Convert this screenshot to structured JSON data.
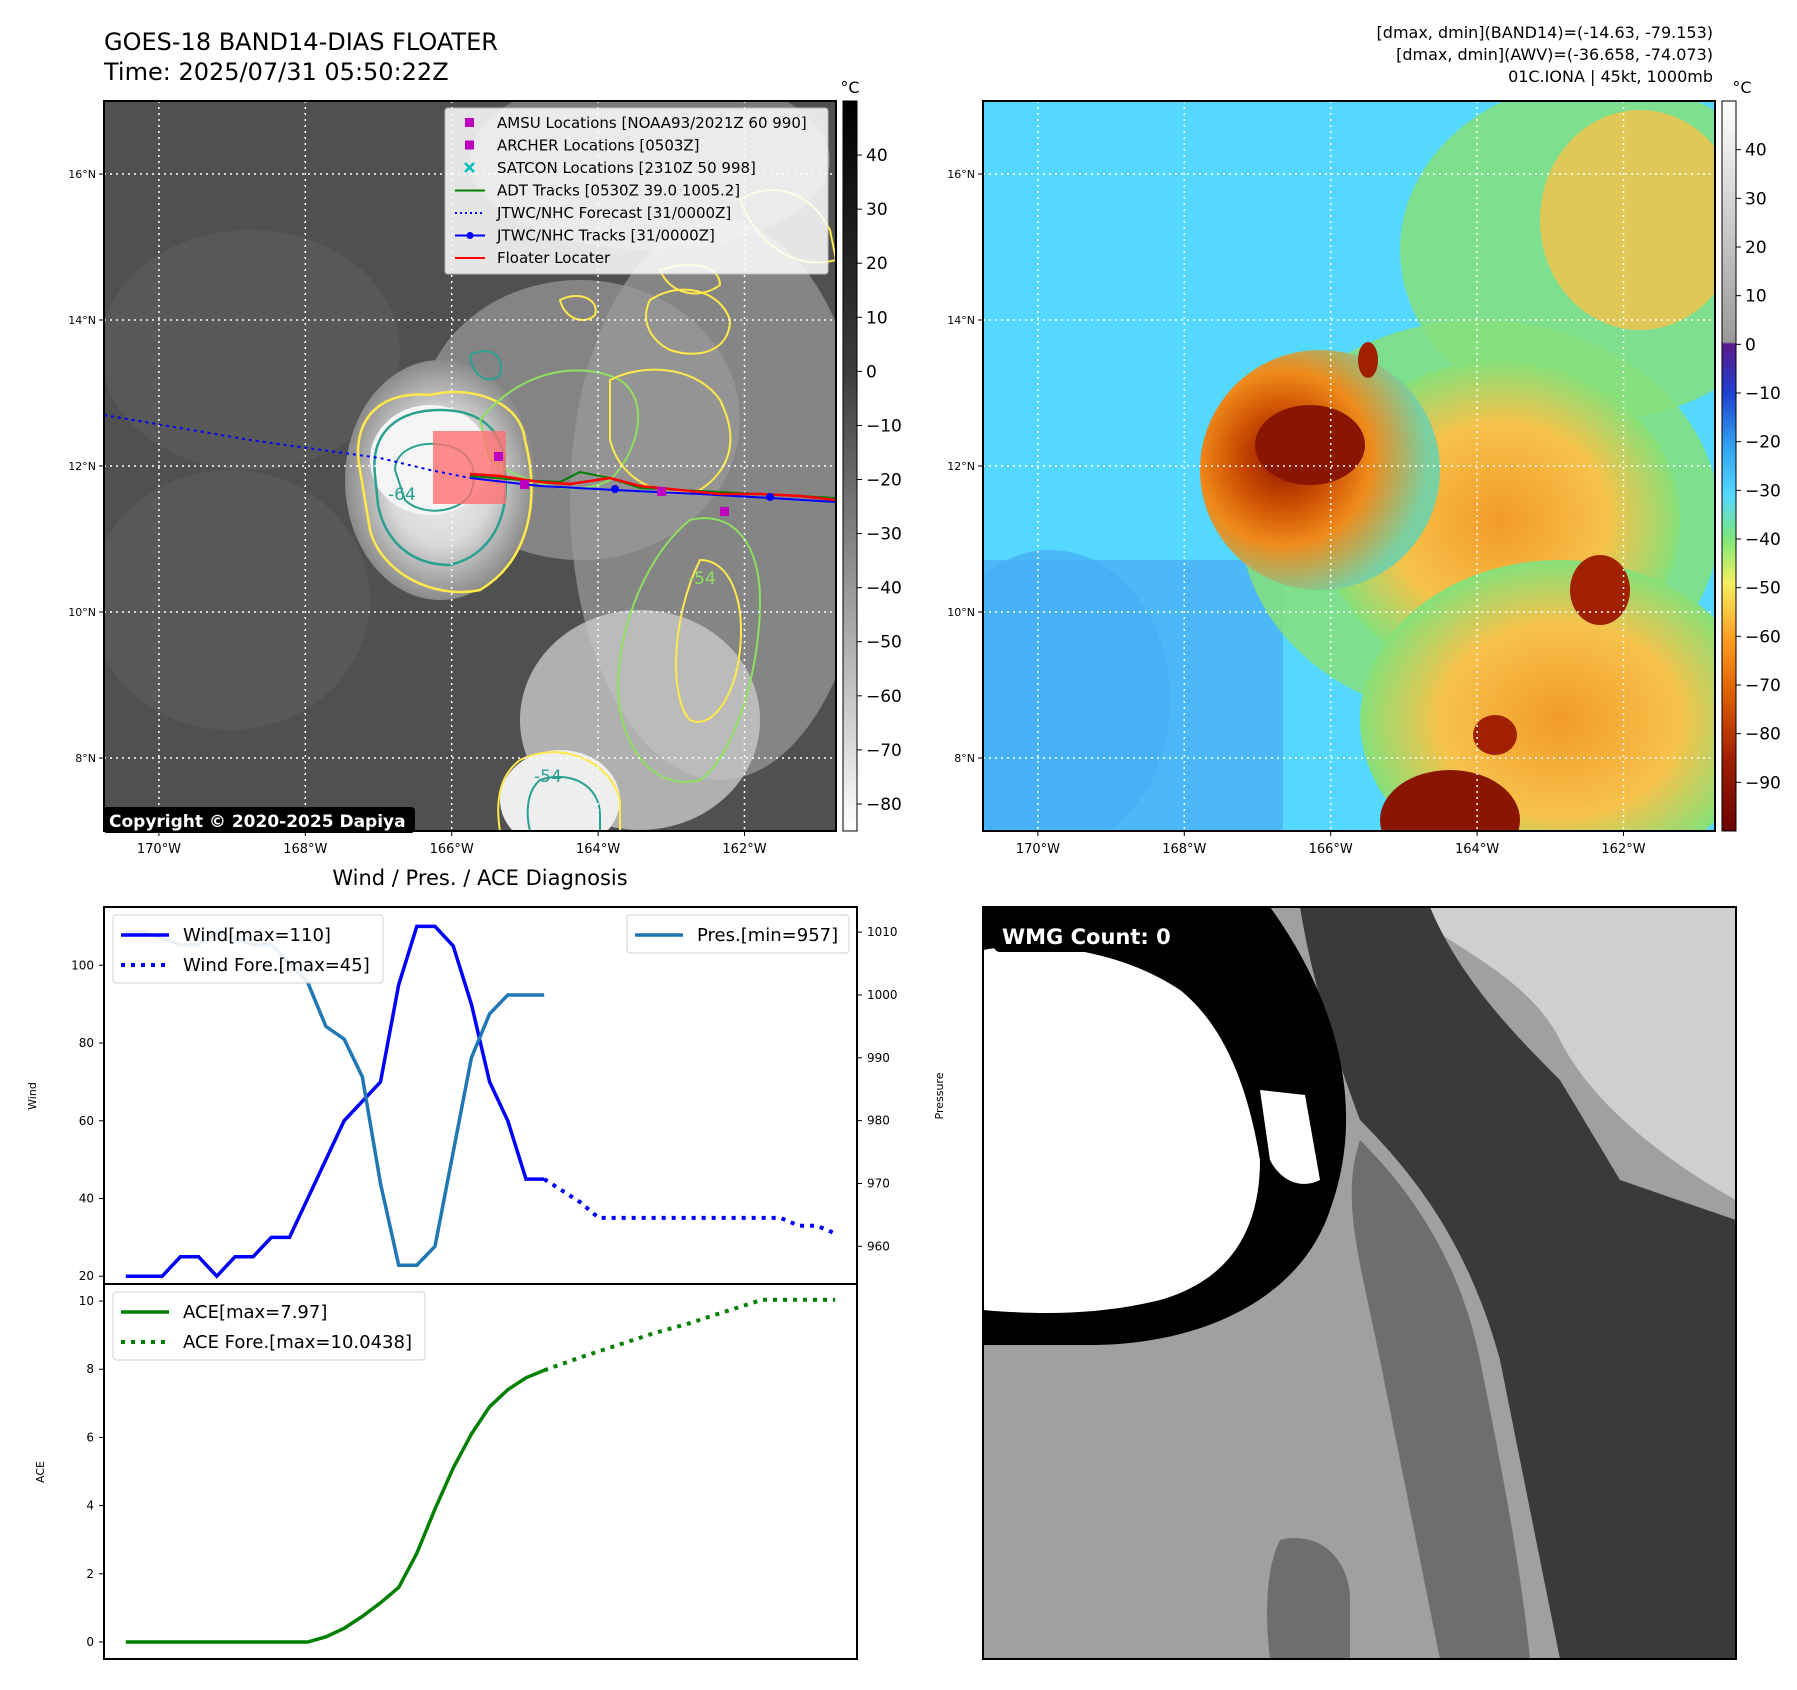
{
  "header": {
    "title_line1": "GOES-18 BAND14-DIAS FLOATER",
    "title_line2": "Time: 2025/07/31 05:50:22Z",
    "info_line1": "[dmax, dmin](BAND14)=(-14.63, -79.153)",
    "info_line2": "[dmax, dmin](AWV)=(-36.658, -74.073)",
    "info_line3": "01C.IONA | 45kt, 1000mb"
  },
  "map": {
    "lat_ticks": [
      "16°N",
      "14°N",
      "12°N",
      "10°N",
      "8°N"
    ],
    "lat_values": [
      16,
      14,
      12,
      10,
      8
    ],
    "lon_ticks": [
      "170°W",
      "168°W",
      "166°W",
      "164°W",
      "162°W"
    ],
    "lon_values": [
      -170,
      -168,
      -166,
      -164,
      -162
    ],
    "lat_range": [
      7,
      17
    ],
    "lon_range": [
      -170.75,
      -160.75
    ],
    "copyright": "Copyright © 2020-2025 Dapiya",
    "contour_labels": [
      "-64",
      "-54",
      "-54"
    ],
    "legend": [
      {
        "label": "AMSU Locations [NOAA93/2021Z 60 990]",
        "color": "#c000c0",
        "marker": "square"
      },
      {
        "label": "ARCHER Locations [0503Z]",
        "color": "#c000c0",
        "marker": "square"
      },
      {
        "label": "SATCON Locations [2310Z 50 998]",
        "color": "#00bfbf",
        "marker": "x"
      },
      {
        "label": "ADT Tracks [0530Z 39.0 1005.2]",
        "color": "#008000",
        "marker": "line"
      },
      {
        "label": "JTWC/NHC Forecast [31/0000Z]",
        "color": "#0000ff",
        "marker": "dotted"
      },
      {
        "label": "JTWC/NHC Tracks [31/0000Z]",
        "color": "#0000ff",
        "marker": "line-dot"
      },
      {
        "label": "Floater Locater",
        "color": "#ff0000",
        "marker": "line"
      }
    ]
  },
  "colorbar_gray": {
    "unit": "°C",
    "ticks": [
      "40",
      "30",
      "20",
      "10",
      "0",
      "−10",
      "−20",
      "−30",
      "−40",
      "−50",
      "−60",
      "−70",
      "−80"
    ],
    "tick_values": [
      40,
      30,
      20,
      10,
      0,
      -10,
      -20,
      -30,
      -40,
      -50,
      -60,
      -70,
      -80
    ],
    "range": [
      -85,
      50
    ]
  },
  "colorbar_color": {
    "unit": "°C",
    "ticks": [
      "40",
      "30",
      "20",
      "10",
      "0",
      "−10",
      "−20",
      "−30",
      "−40",
      "−50",
      "−60",
      "−70",
      "−80",
      "−90"
    ],
    "tick_values": [
      40,
      30,
      20,
      10,
      0,
      -10,
      -20,
      -30,
      -40,
      -50,
      -60,
      -70,
      -80,
      -90
    ],
    "range": [
      -100,
      50
    ]
  },
  "wmg": {
    "label": "WMG Count: 0"
  },
  "chart_data": [
    {
      "type": "line",
      "title": "Wind / Pres. / ACE Diagnosis",
      "ylabel": "Wind",
      "ylim": [
        18,
        115
      ],
      "yticks": [
        20,
        40,
        60,
        80,
        100
      ],
      "series": [
        {
          "name": "Wind[max=110]",
          "color": "#0000ff",
          "style": "solid",
          "x": [
            0,
            1,
            2,
            3,
            4,
            5,
            6,
            7,
            8,
            9,
            10,
            11,
            12,
            13,
            14,
            15,
            16,
            17,
            18,
            19,
            20,
            21,
            22,
            23
          ],
          "values": [
            20,
            20,
            20,
            25,
            25,
            20,
            25,
            25,
            30,
            30,
            40,
            50,
            60,
            65,
            70,
            95,
            110,
            110,
            105,
            90,
            70,
            60,
            45,
            45
          ]
        },
        {
          "name": "Wind Fore.[max=45]",
          "color": "#0000ff",
          "style": "dotted",
          "x": [
            23,
            24,
            25,
            26,
            27,
            28,
            29,
            30,
            31,
            32,
            33,
            34,
            35,
            36,
            37,
            38,
            39
          ],
          "values": [
            45,
            42,
            39,
            35,
            35,
            35,
            35,
            35,
            35,
            35,
            35,
            35,
            35,
            35,
            33,
            33,
            31
          ]
        }
      ],
      "ylabel2": "Pressure",
      "y2lim": [
        954,
        1014
      ],
      "y2ticks": [
        960,
        970,
        980,
        990,
        1000,
        1010
      ],
      "series2": [
        {
          "name": "Pres.[min=957]",
          "color": "#1f77b4",
          "style": "solid",
          "x": [
            0,
            1,
            2,
            3,
            4,
            5,
            6,
            7,
            8,
            9,
            10,
            11,
            12,
            13,
            14,
            15,
            16,
            17,
            18,
            19,
            20,
            21,
            22,
            23
          ],
          "values": [
            1010,
            1010,
            1009,
            1008,
            1008,
            1010,
            1009,
            1008,
            1008,
            1005,
            1002,
            995,
            993,
            987,
            970,
            957,
            957,
            960,
            975,
            990,
            997,
            1000,
            1000,
            1000
          ]
        }
      ]
    },
    {
      "type": "line",
      "ylabel": "ACE",
      "ylim": [
        -0.5,
        10.5
      ],
      "yticks": [
        0,
        2,
        4,
        6,
        8,
        10
      ],
      "series": [
        {
          "name": "ACE[max=7.97]",
          "color": "#008000",
          "style": "solid",
          "x": [
            0,
            1,
            2,
            3,
            4,
            5,
            6,
            7,
            8,
            9,
            10,
            11,
            12,
            13,
            14,
            15,
            16,
            17,
            18,
            19,
            20,
            21,
            22,
            23
          ],
          "values": [
            0,
            0,
            0,
            0,
            0,
            0,
            0,
            0,
            0,
            0,
            0,
            0.15,
            0.4,
            0.75,
            1.15,
            1.6,
            2.6,
            3.9,
            5.1,
            6.1,
            6.9,
            7.4,
            7.75,
            7.97
          ]
        },
        {
          "name": "ACE Fore.[max=10.0438]",
          "color": "#008000",
          "style": "dotted",
          "x": [
            23,
            25,
            27,
            29,
            31,
            33,
            35,
            37,
            39
          ],
          "values": [
            7.97,
            8.35,
            8.7,
            9.05,
            9.35,
            9.7,
            10.04,
            10.04,
            10.04
          ]
        }
      ]
    }
  ]
}
